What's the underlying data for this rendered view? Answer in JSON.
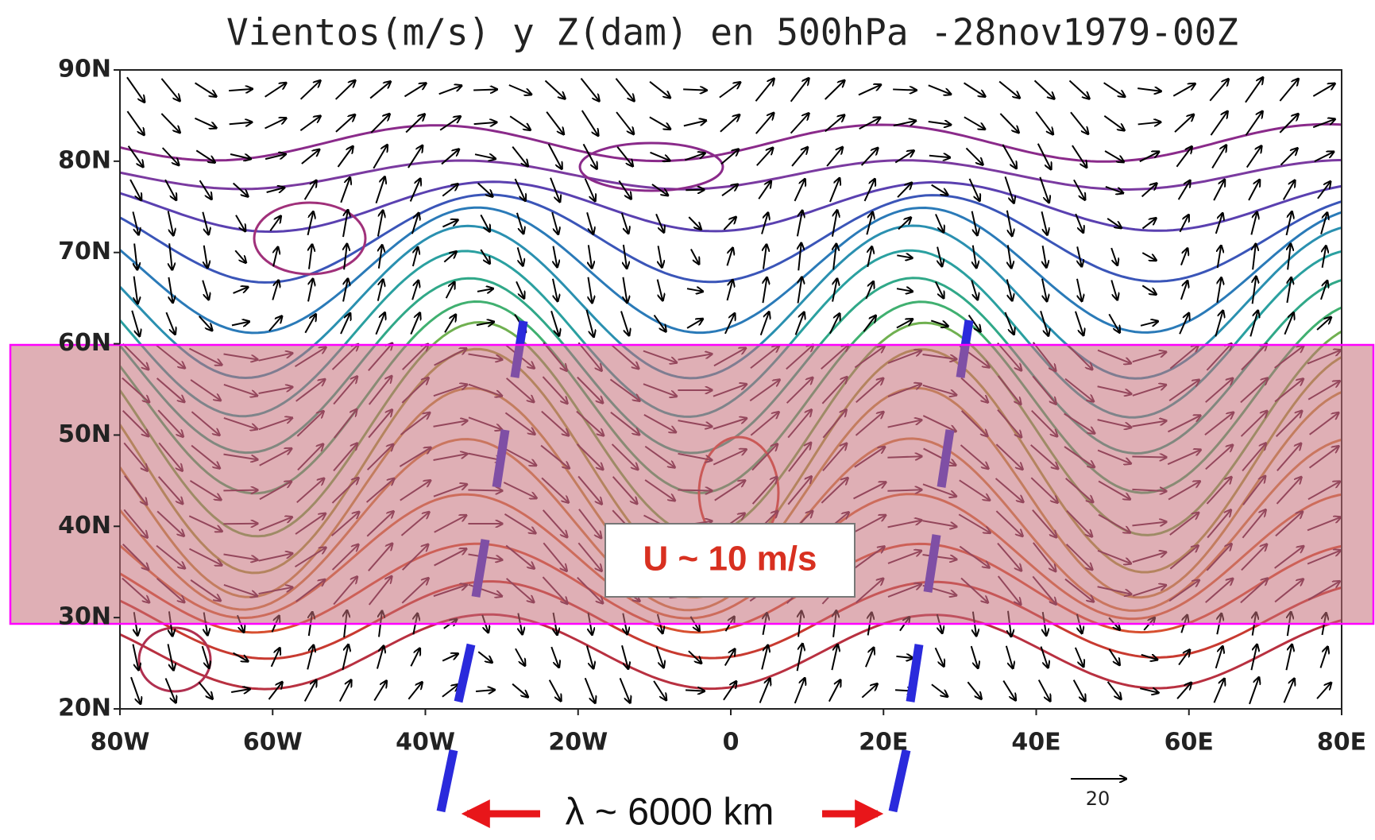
{
  "title": "Vientos(m/s) y Z(dam) en 500hPa -28nov1979-00Z",
  "lat_labels": [
    "90N",
    "80N",
    "70N",
    "60N",
    "50N",
    "40N",
    "30N",
    "20N"
  ],
  "lon_labels": [
    "80W",
    "60W",
    "40W",
    "20W",
    "0",
    "20E",
    "40E",
    "60E",
    "80E"
  ],
  "band_label": "U ~ 10 m/s",
  "wavelength_label": "λ ~ 6000 km",
  "vector_scale_label": "20"
}
